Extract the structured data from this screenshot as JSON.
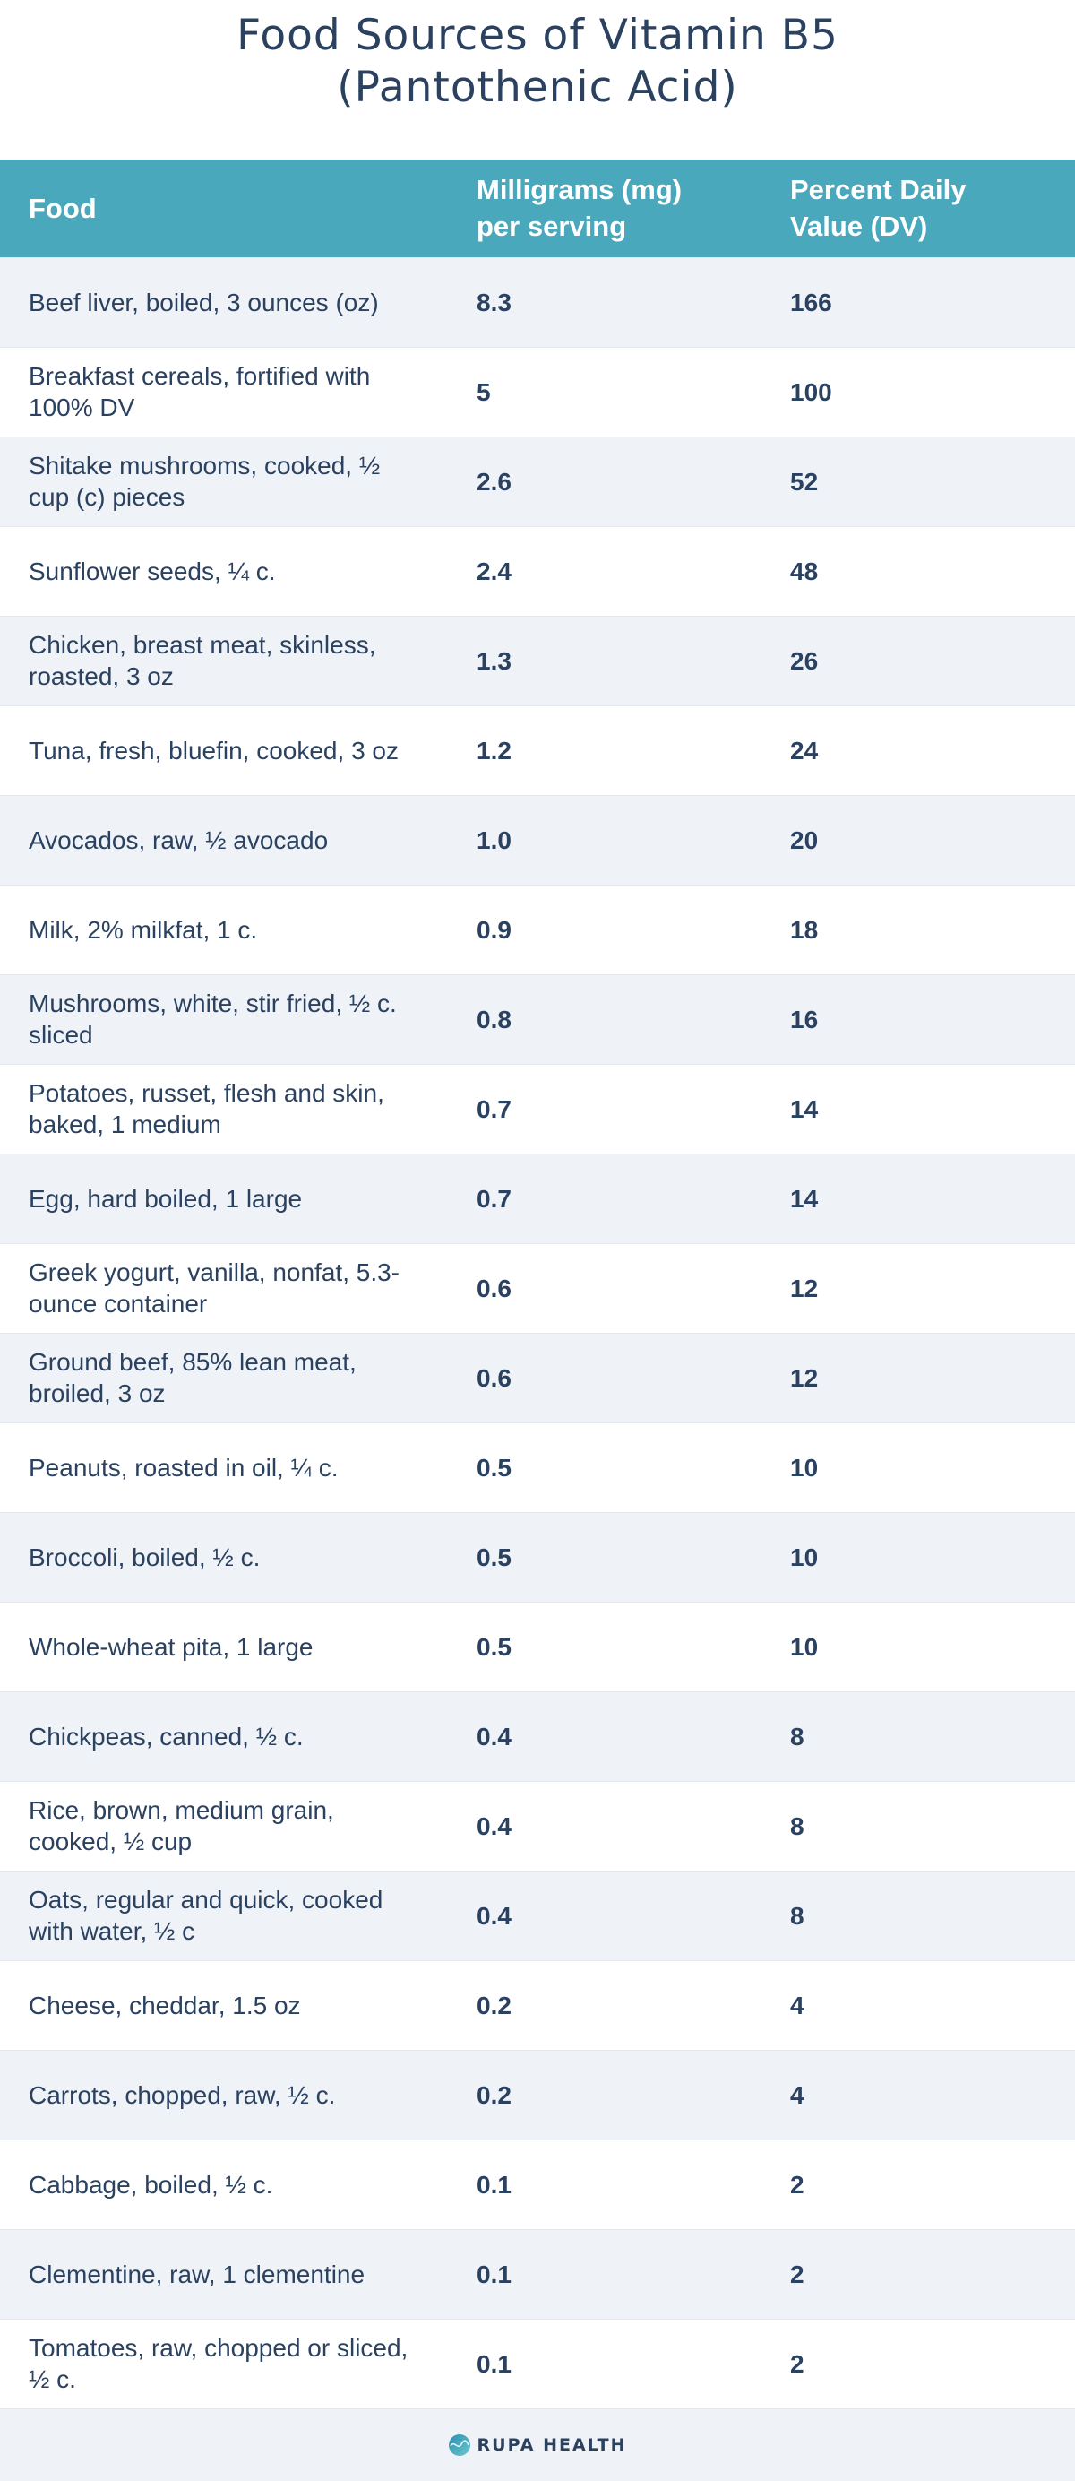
{
  "title": {
    "line1": "Food Sources of Vitamin B5",
    "line2": "(Pantothenic Acid)"
  },
  "table": {
    "headers": [
      "Food",
      "Milligrams (mg) per serving",
      "Percent Daily Value (DV)"
    ],
    "rows": [
      {
        "food": "Beef liver, boiled, 3 ounces (oz)",
        "mg": "8.3",
        "dv": "166"
      },
      {
        "food": "Breakfast cereals, fortified with 100% DV",
        "mg": "5",
        "dv": "100"
      },
      {
        "food": "Shitake mushrooms, cooked, ½ cup (c) pieces",
        "mg": "2.6",
        "dv": "52"
      },
      {
        "food": "Sunflower seeds, ¼ c.",
        "mg": "2.4",
        "dv": "48"
      },
      {
        "food": "Chicken, breast meat, skinless, roasted, 3 oz",
        "mg": "1.3",
        "dv": "26"
      },
      {
        "food": "Tuna, fresh, bluefin, cooked, 3 oz",
        "mg": "1.2",
        "dv": "24"
      },
      {
        "food": "Avocados, raw, ½ avocado",
        "mg": "1.0",
        "dv": "20"
      },
      {
        "food": "Milk, 2% milkfat, 1 c.",
        "mg": "0.9",
        "dv": "18"
      },
      {
        "food": "Mushrooms, white, stir fried, ½ c. sliced",
        "mg": "0.8",
        "dv": "16"
      },
      {
        "food": "Potatoes, russet, flesh and skin, baked, 1 medium",
        "mg": "0.7",
        "dv": "14"
      },
      {
        "food": "Egg, hard boiled, 1 large",
        "mg": "0.7",
        "dv": "14"
      },
      {
        "food": "Greek yogurt, vanilla, nonfat, 5.3-ounce container",
        "mg": "0.6",
        "dv": "12"
      },
      {
        "food": "Ground beef, 85% lean meat, broiled, 3 oz",
        "mg": "0.6",
        "dv": "12"
      },
      {
        "food": "Peanuts, roasted in oil, ¼ c.",
        "mg": "0.5",
        "dv": "10"
      },
      {
        "food": "Broccoli, boiled, ½ c.",
        "mg": "0.5",
        "dv": "10"
      },
      {
        "food": "Whole-wheat pita, 1 large",
        "mg": "0.5",
        "dv": "10"
      },
      {
        "food": "Chickpeas, canned, ½ c.",
        "mg": "0.4",
        "dv": "8"
      },
      {
        "food": "Rice, brown, medium grain, cooked, ½ cup",
        "mg": "0.4",
        "dv": "8"
      },
      {
        "food": "Oats, regular and quick, cooked with water, ½ c",
        "mg": "0.4",
        "dv": "8"
      },
      {
        "food": "Cheese, cheddar, 1.5 oz",
        "mg": "0.2",
        "dv": "4"
      },
      {
        "food": "Carrots, chopped, raw, ½ c.",
        "mg": "0.2",
        "dv": "4"
      },
      {
        "food": "Cabbage, boiled, ½ c.",
        "mg": "0.1",
        "dv": "2"
      },
      {
        "food": "Clementine, raw, 1 clementine",
        "mg": "0.1",
        "dv": "2"
      },
      {
        "food": "Tomatoes, raw, chopped or sliced, ½ c.",
        "mg": "0.1",
        "dv": "2"
      }
    ]
  },
  "footer": {
    "brand": "RUPA HEALTH",
    "logo_icon": "rupa-health-logo-icon"
  },
  "colors": {
    "header_bg": "#4aa8bd",
    "text": "#2b4160",
    "row_alt": "#eff3f8"
  }
}
